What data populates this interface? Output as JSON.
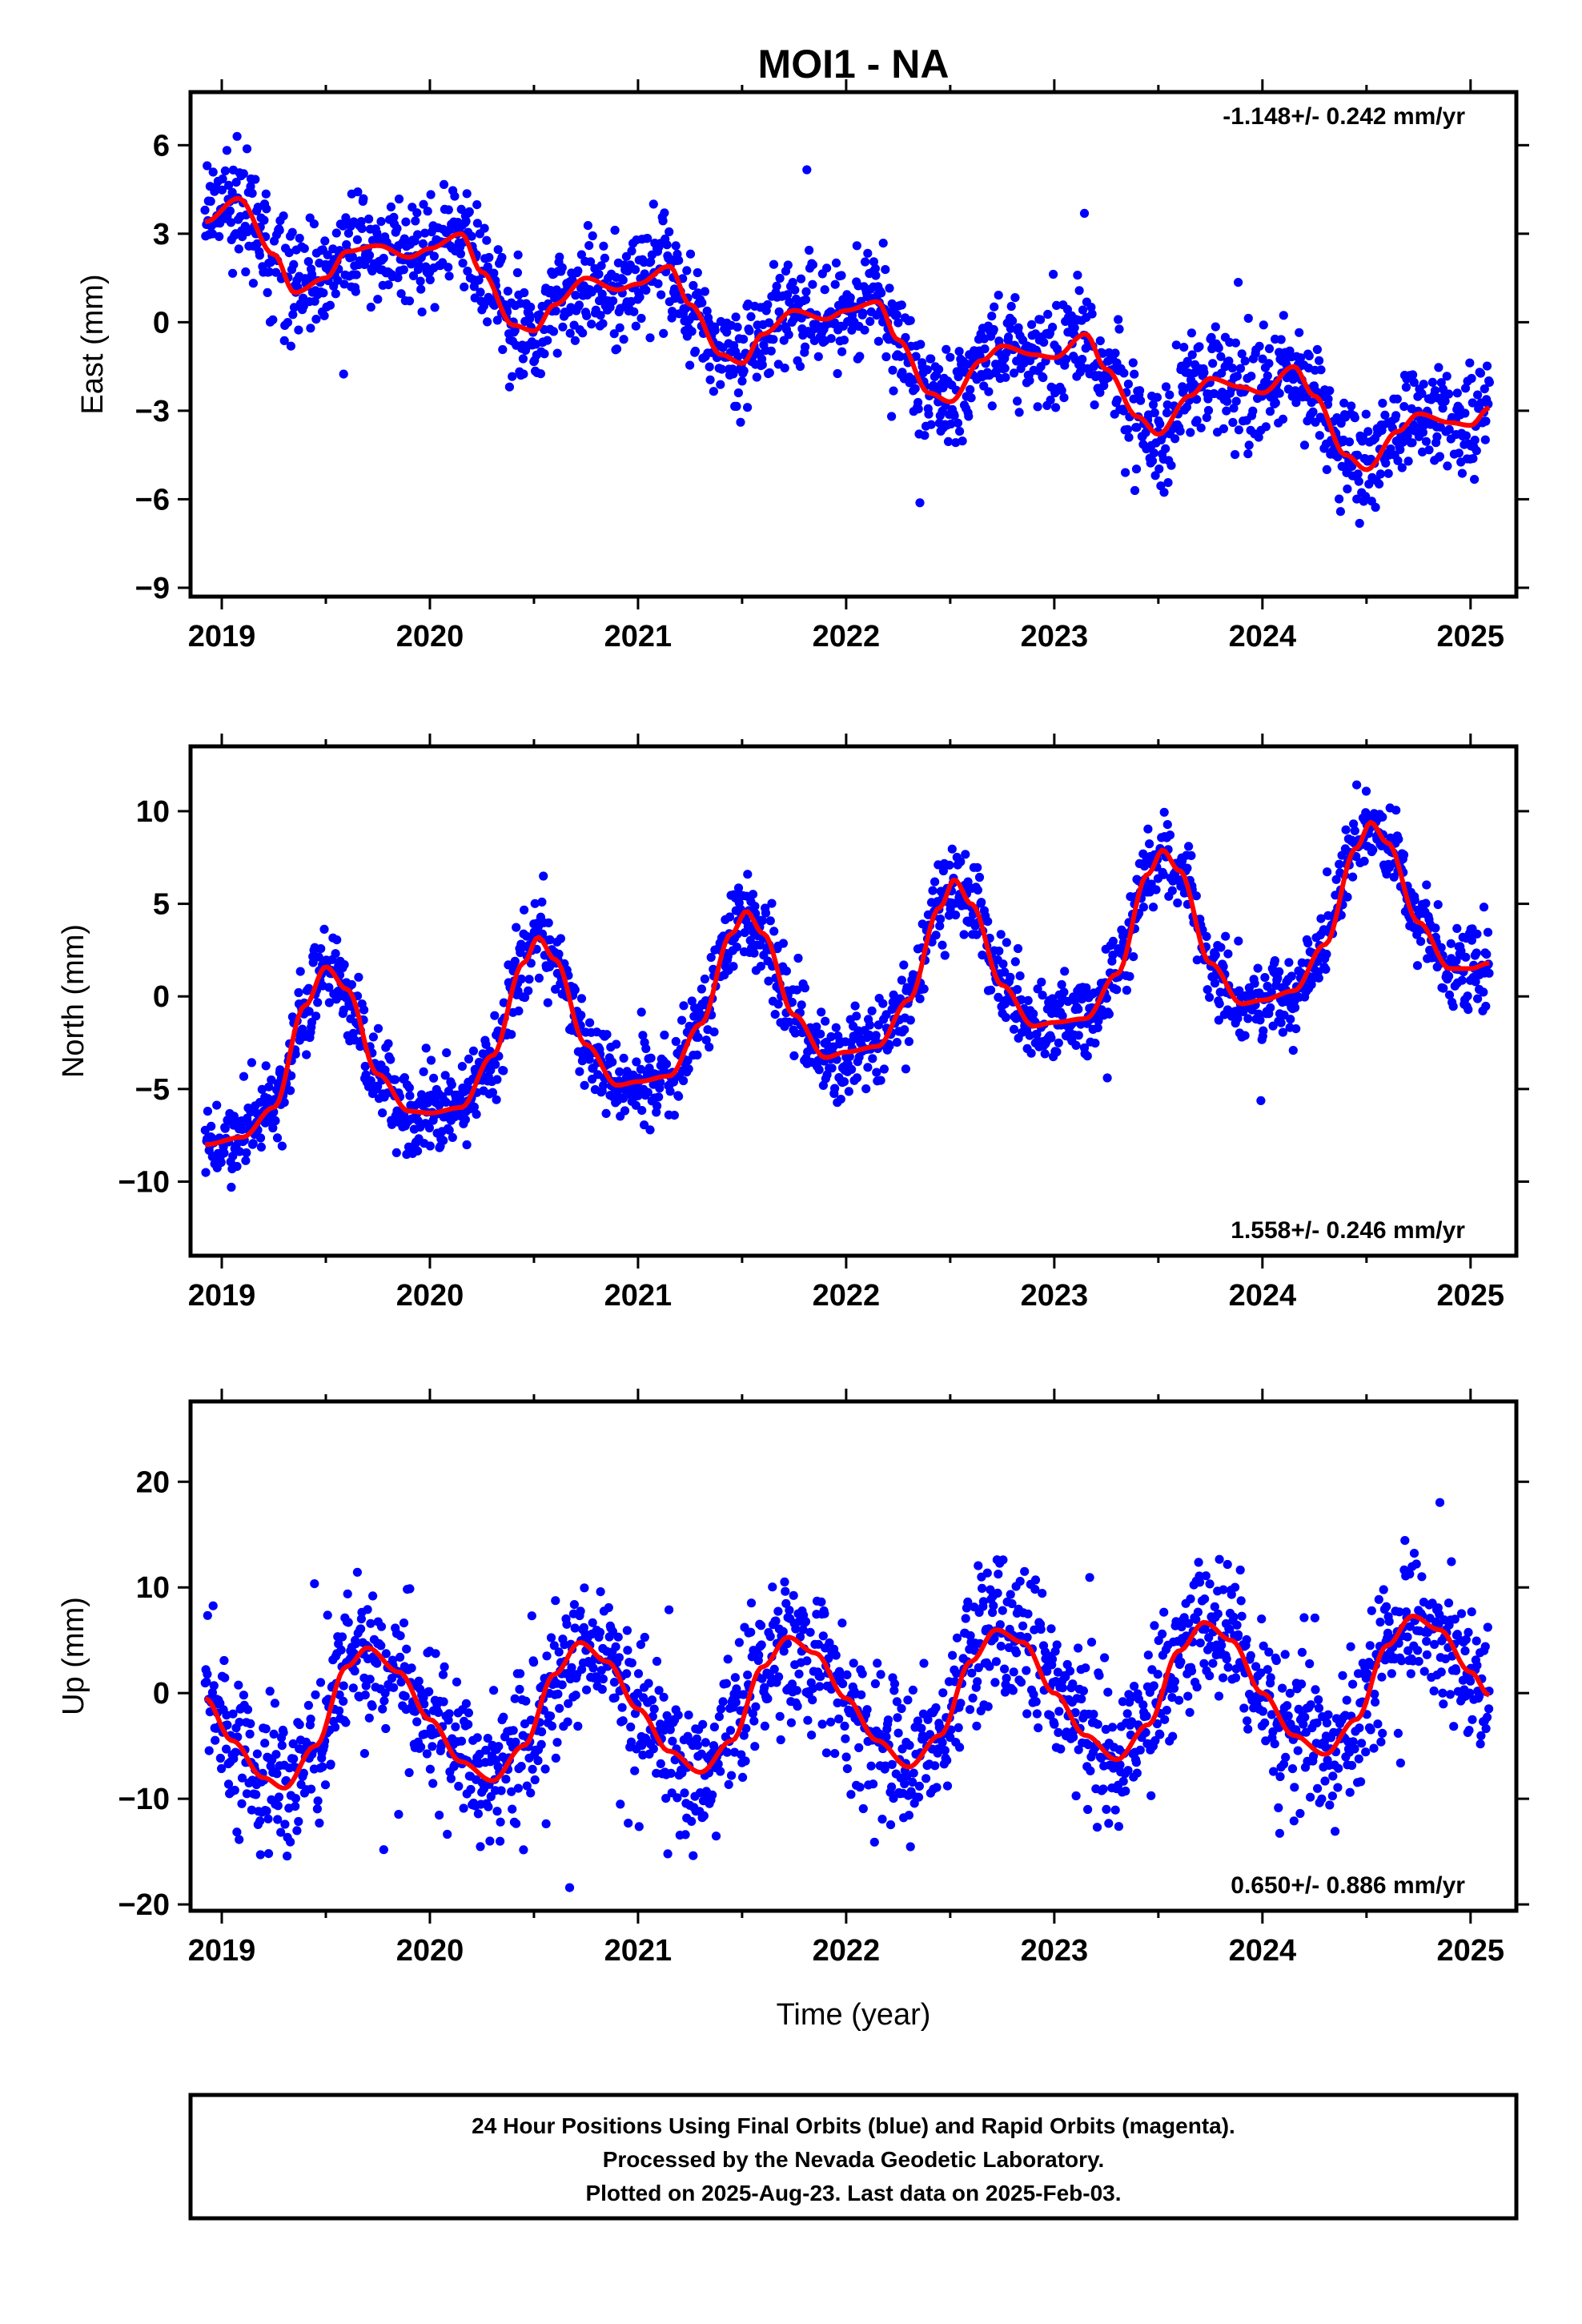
{
  "title": "MOI1 - NA",
  "caption": {
    "lines": [
      "24 Hour Positions Using Final Orbits (blue) and Rapid Orbits (magenta).",
      "Processed by the Nevada Geodetic Laboratory.",
      "Plotted on 2025-Aug-23. Last data on 2025-Feb-03."
    ]
  },
  "colors": {
    "points": "#0000ff",
    "fit": "#ff0000",
    "frame": "#000000"
  },
  "chart_data": [
    {
      "type": "scatter",
      "ylabel": "East (mm)",
      "xlabel": "",
      "rate_label": "-1.148+/- 0.242 mm/yr",
      "rate_position": "top-right",
      "xlim": [
        2018.85,
        2025.22
      ],
      "ylim": [
        -9.3,
        7.8
      ],
      "xticks": [
        2019,
        2020,
        2021,
        2022,
        2023,
        2024,
        2025
      ],
      "yticks": [
        -9,
        -6,
        -3,
        0,
        3,
        6
      ],
      "ytick_labels": [
        "−9",
        "−6",
        "−3",
        "0",
        "3",
        "6"
      ],
      "x_start": 2018.92,
      "x_end": 2025.09,
      "fit": {
        "name": "fit",
        "x": [
          2018.92,
          2019.08,
          2019.25,
          2019.35,
          2019.5,
          2019.6,
          2019.75,
          2019.9,
          2020.0,
          2020.15,
          2020.25,
          2020.4,
          2020.5,
          2020.6,
          2020.75,
          2020.9,
          2021.0,
          2021.15,
          2021.25,
          2021.4,
          2021.5,
          2021.6,
          2021.75,
          2021.9,
          2022.0,
          2022.15,
          2022.25,
          2022.4,
          2022.5,
          2022.65,
          2022.75,
          2022.9,
          2023.0,
          2023.15,
          2023.25,
          2023.4,
          2023.5,
          2023.65,
          2023.75,
          2023.9,
          2024.0,
          2024.15,
          2024.25,
          2024.4,
          2024.5,
          2024.65,
          2024.75,
          2024.9,
          2025.0,
          2025.09
        ],
        "y": [
          3.4,
          4.2,
          2.3,
          1.0,
          1.5,
          2.4,
          2.6,
          2.2,
          2.5,
          3.0,
          1.7,
          -0.1,
          -0.3,
          0.6,
          1.5,
          1.1,
          1.3,
          1.9,
          0.6,
          -1.1,
          -1.4,
          -0.4,
          0.4,
          0.1,
          0.4,
          0.7,
          -0.6,
          -2.4,
          -2.7,
          -1.3,
          -0.8,
          -1.1,
          -1.2,
          -0.4,
          -1.6,
          -3.2,
          -3.8,
          -2.5,
          -1.9,
          -2.2,
          -2.4,
          -1.5,
          -2.5,
          -4.5,
          -5.0,
          -3.7,
          -3.1,
          -3.4,
          -3.5,
          -2.9
        ]
      },
      "noise_sd": 0.9
    },
    {
      "type": "scatter",
      "ylabel": "North (mm)",
      "xlabel": "",
      "rate_label": "1.558+/- 0.246 mm/yr",
      "rate_position": "bottom-right",
      "xlim": [
        2018.85,
        2025.22
      ],
      "ylim": [
        -14.0,
        13.5
      ],
      "xticks": [
        2019,
        2020,
        2021,
        2022,
        2023,
        2024,
        2025
      ],
      "yticks": [
        -10,
        -5,
        0,
        5,
        10
      ],
      "ytick_labels": [
        "−10",
        "−5",
        "0",
        "5",
        "10"
      ],
      "x_start": 2018.92,
      "x_end": 2025.09,
      "fit": {
        "name": "fit",
        "x": [
          2018.92,
          2019.1,
          2019.25,
          2019.4,
          2019.5,
          2019.6,
          2019.75,
          2019.9,
          2020.0,
          2020.15,
          2020.3,
          2020.45,
          2020.52,
          2020.6,
          2020.75,
          2020.9,
          2021.0,
          2021.15,
          2021.3,
          2021.45,
          2021.52,
          2021.6,
          2021.75,
          2021.9,
          2022.0,
          2022.15,
          2022.3,
          2022.45,
          2022.52,
          2022.6,
          2022.75,
          2022.9,
          2023.0,
          2023.15,
          2023.3,
          2023.45,
          2023.52,
          2023.6,
          2023.75,
          2023.9,
          2024.0,
          2024.15,
          2024.3,
          2024.45,
          2024.52,
          2024.6,
          2024.75,
          2024.9,
          2025.0,
          2025.09
        ],
        "y": [
          -8.0,
          -7.6,
          -6.0,
          -0.5,
          1.6,
          0.4,
          -4.2,
          -6.2,
          -6.3,
          -6.0,
          -3.2,
          1.8,
          3.2,
          2.0,
          -2.6,
          -4.8,
          -4.6,
          -4.3,
          -1.5,
          3.4,
          4.6,
          3.4,
          -1.0,
          -3.3,
          -3.0,
          -2.7,
          -0.2,
          4.8,
          6.3,
          5.0,
          0.6,
          -1.6,
          -1.4,
          -1.2,
          1.2,
          6.6,
          7.9,
          6.8,
          1.8,
          -0.4,
          -0.2,
          0.3,
          2.8,
          8.0,
          9.4,
          8.3,
          4.0,
          1.5,
          1.5,
          1.8
        ]
      },
      "noise_sd": 1.1
    },
    {
      "type": "scatter",
      "ylabel": "Up (mm)",
      "xlabel": "Time (year)",
      "rate_label": "0.650+/- 0.886 mm/yr",
      "rate_position": "bottom-right",
      "xlim": [
        2018.85,
        2025.22
      ],
      "ylim": [
        -20.6,
        27.6
      ],
      "xticks": [
        2019,
        2020,
        2021,
        2022,
        2023,
        2024,
        2025
      ],
      "yticks": [
        -20,
        -10,
        0,
        10,
        20
      ],
      "ytick_labels": [
        "−20",
        "−10",
        "0",
        "10",
        "20"
      ],
      "x_start": 2018.92,
      "x_end": 2025.09,
      "fit": {
        "name": "fit",
        "x": [
          2018.92,
          2019.05,
          2019.2,
          2019.3,
          2019.45,
          2019.6,
          2019.7,
          2019.85,
          2020.0,
          2020.15,
          2020.3,
          2020.45,
          2020.6,
          2020.72,
          2020.85,
          2021.0,
          2021.15,
          2021.3,
          2021.45,
          2021.6,
          2021.72,
          2021.85,
          2022.0,
          2022.15,
          2022.3,
          2022.45,
          2022.6,
          2022.72,
          2022.85,
          2023.0,
          2023.15,
          2023.3,
          2023.45,
          2023.6,
          2023.72,
          2023.85,
          2024.0,
          2024.15,
          2024.3,
          2024.45,
          2024.6,
          2024.72,
          2024.85,
          2025.0,
          2025.09
        ],
        "y": [
          -0.5,
          -4.5,
          -8.0,
          -9.0,
          -5.0,
          2.5,
          4.3,
          2.0,
          -2.5,
          -6.5,
          -8.3,
          -5.0,
          1.8,
          4.8,
          3.0,
          -1.5,
          -5.5,
          -7.5,
          -4.5,
          2.5,
          5.3,
          3.8,
          -0.5,
          -4.5,
          -7.0,
          -4.0,
          3.0,
          6.0,
          4.8,
          0.0,
          -4.0,
          -6.3,
          -3.0,
          4.0,
          6.7,
          5.0,
          0.0,
          -4.0,
          -5.8,
          -2.5,
          4.5,
          7.3,
          6.0,
          2.0,
          -0.2
        ]
      },
      "noise_sd": 3.4
    }
  ]
}
